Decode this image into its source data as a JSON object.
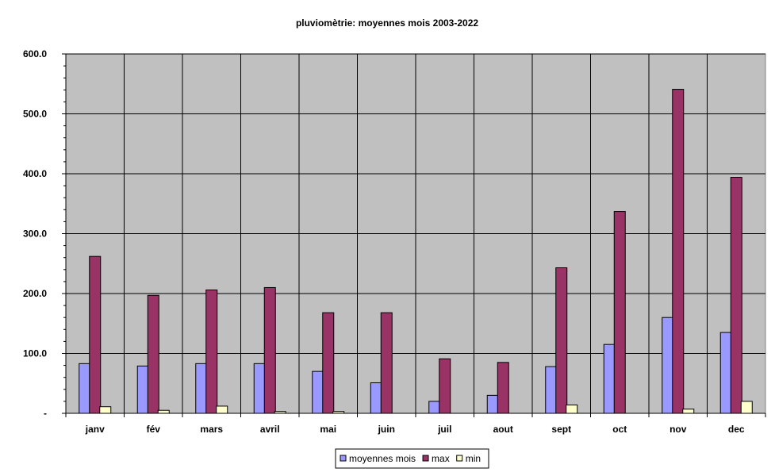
{
  "chart_data": {
    "type": "bar",
    "title": "pluviomètrie: moyennes mois 2003-2022",
    "xlabel": "",
    "ylabel": "",
    "ylim": [
      0,
      600
    ],
    "yticks": [
      {
        "value": 0,
        "label": "-"
      },
      {
        "value": 100,
        "label": "100.0"
      },
      {
        "value": 200,
        "label": "200.0"
      },
      {
        "value": 300,
        "label": "300.0"
      },
      {
        "value": 400,
        "label": "400.0"
      },
      {
        "value": 500,
        "label": "500.0"
      },
      {
        "value": 600,
        "label": "600.0"
      }
    ],
    "grid": true,
    "legend_position": "bottom",
    "categories": [
      "janv",
      "fév",
      "mars",
      "avril",
      "mai",
      "juin",
      "juil",
      "aout",
      "sept",
      "oct",
      "nov",
      "dec"
    ],
    "series": [
      {
        "name": "moyennes mois",
        "color": "#9999ff",
        "values": [
          83,
          79,
          83,
          83,
          70,
          51,
          20,
          30,
          78,
          115,
          160,
          135
        ]
      },
      {
        "name": "max",
        "color": "#993366",
        "values": [
          262,
          197,
          206,
          210,
          168,
          168,
          91,
          85,
          243,
          337,
          541,
          394
        ]
      },
      {
        "name": "min",
        "color": "#ffffcc",
        "values": [
          11,
          5,
          12,
          3,
          3,
          0,
          0,
          0,
          14,
          0,
          7,
          20
        ]
      }
    ]
  }
}
